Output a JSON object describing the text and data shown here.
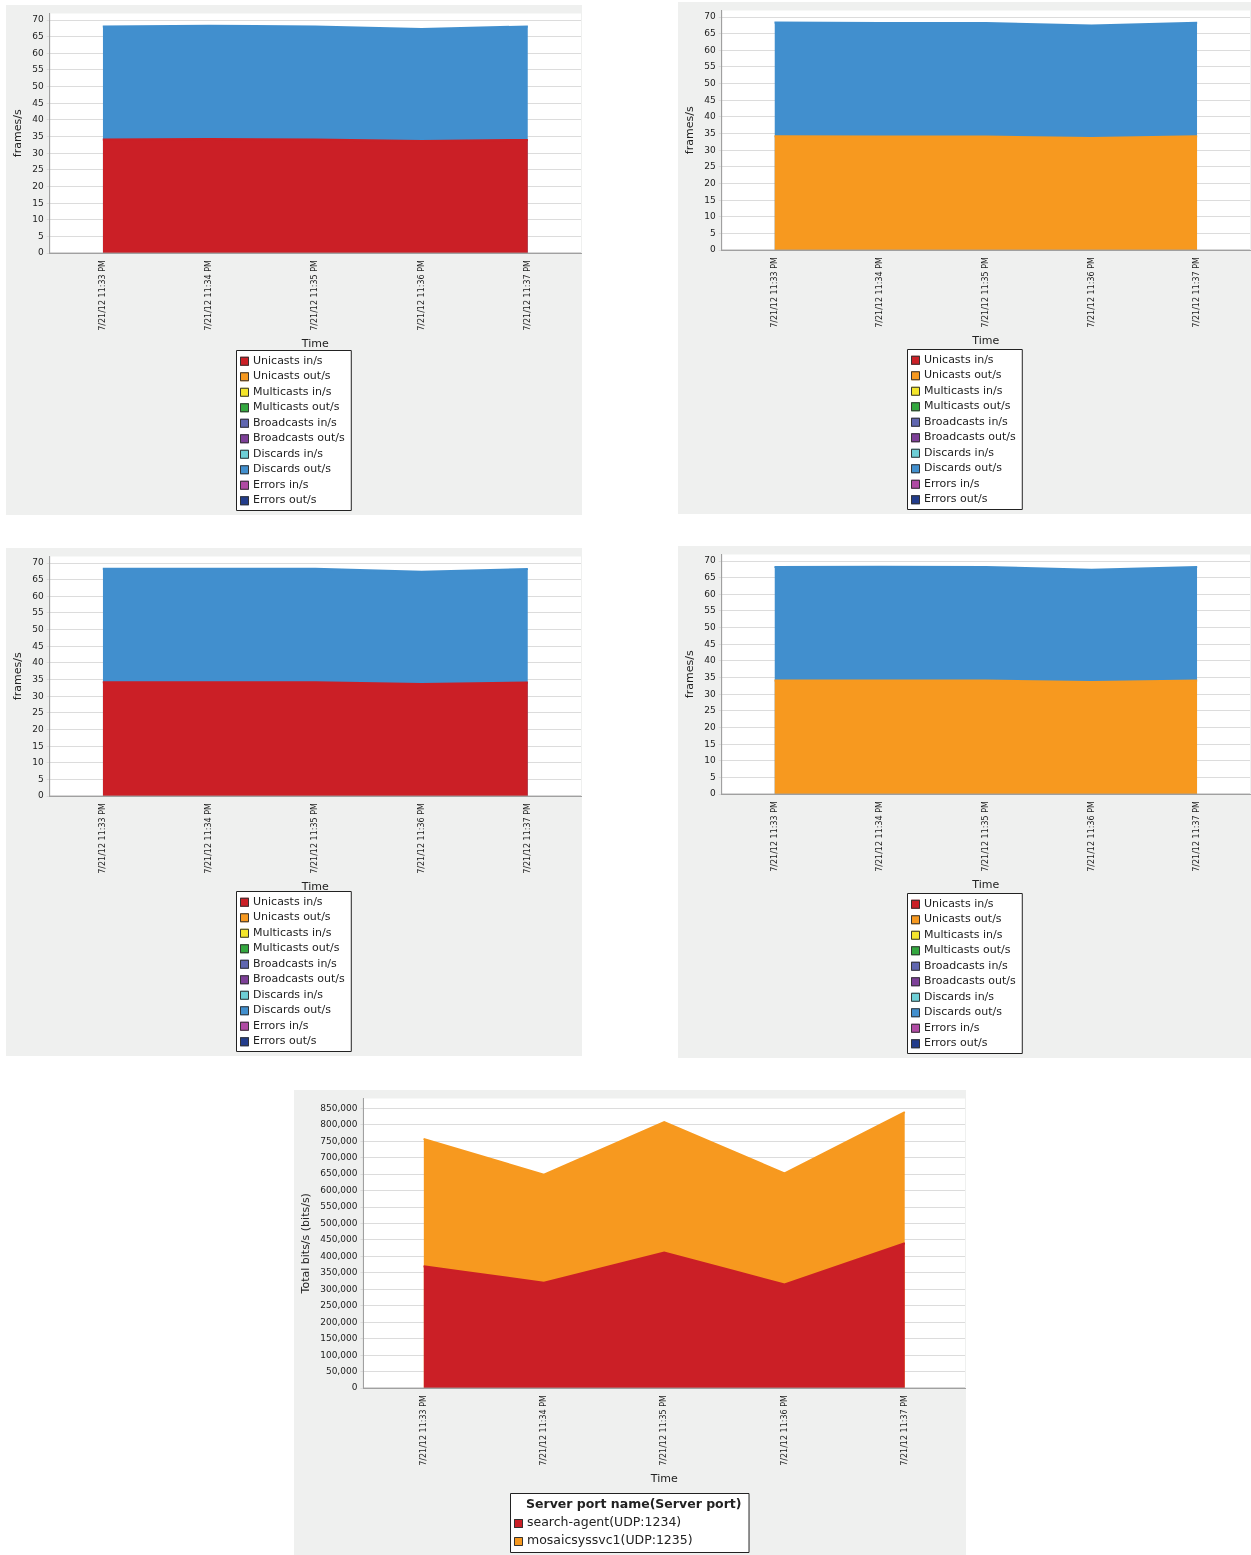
{
  "chart_data": [
    {
      "type": "area",
      "xlabel": "Time",
      "ylabel": "frames/s",
      "categories": [
        "7/21/12 11:33 PM",
        "7/21/12 11:34 PM",
        "7/21/12 11:35 PM",
        "7/21/12 11:36 PM",
        "7/21/12 11:37 PM"
      ],
      "stacked": true,
      "ylim": [
        0,
        72
      ],
      "yticks": [
        0,
        5,
        10,
        15,
        20,
        25,
        30,
        35,
        40,
        45,
        50,
        55,
        60,
        65,
        70
      ],
      "grid": "y",
      "legend": "bottom",
      "marker": "none",
      "series": [
        {
          "name": "Unicasts in/s",
          "color": "#cb1f26",
          "values": [
            34.1,
            34.3,
            34.1,
            33.7,
            34.0
          ]
        },
        {
          "name": "Unicasts out/s",
          "color": "#f7991f",
          "values": [
            null,
            null,
            null,
            null,
            null
          ]
        },
        {
          "name": "Multicasts in/s",
          "color": "#f4e62a",
          "values": [
            null,
            null,
            null,
            null,
            null
          ]
        },
        {
          "name": "Multicasts out/s",
          "color": "#33a83f",
          "values": [
            null,
            null,
            null,
            null,
            null
          ]
        },
        {
          "name": "Broadcasts in/s",
          "color": "#6066b0",
          "values": [
            null,
            null,
            null,
            null,
            null
          ]
        },
        {
          "name": "Broadcasts out/s",
          "color": "#7d3f98",
          "values": [
            null,
            null,
            null,
            null,
            null
          ]
        },
        {
          "name": "Discards in/s",
          "color": "#6dcfd6",
          "values": [
            null,
            null,
            null,
            null,
            null
          ]
        },
        {
          "name": "Discards out/s",
          "color": "#418fce",
          "values": [
            34.0,
            34.0,
            34.0,
            33.6,
            34.1
          ]
        },
        {
          "name": "Errors in/s",
          "color": "#b04aa4",
          "values": [
            null,
            null,
            null,
            null,
            null
          ]
        },
        {
          "name": "Errors out/s",
          "color": "#223c8c",
          "values": [
            null,
            null,
            null,
            null,
            null
          ]
        }
      ]
    },
    {
      "type": "area",
      "xlabel": "Time",
      "ylabel": "frames/s",
      "categories": [
        "7/21/12 11:33 PM",
        "7/21/12 11:34 PM",
        "7/21/12 11:35 PM",
        "7/21/12 11:36 PM",
        "7/21/12 11:37 PM"
      ],
      "stacked": true,
      "ylim": [
        0,
        72
      ],
      "yticks": [
        0,
        5,
        10,
        15,
        20,
        25,
        30,
        35,
        40,
        45,
        50,
        55,
        60,
        65,
        70
      ],
      "grid": "y",
      "legend": "bottom",
      "marker": "none",
      "series": [
        {
          "name": "Unicasts in/s",
          "color": "#cb1f26",
          "values": [
            null,
            null,
            null,
            null,
            null
          ]
        },
        {
          "name": "Unicasts out/s",
          "color": "#f7991f",
          "values": [
            34.2,
            34.1,
            34.1,
            33.7,
            34.2
          ]
        },
        {
          "name": "Multicasts in/s",
          "color": "#f4e62a",
          "values": [
            null,
            null,
            null,
            null,
            null
          ]
        },
        {
          "name": "Multicasts out/s",
          "color": "#33a83f",
          "values": [
            null,
            null,
            null,
            null,
            null
          ]
        },
        {
          "name": "Broadcasts in/s",
          "color": "#6066b0",
          "values": [
            null,
            null,
            null,
            null,
            null
          ]
        },
        {
          "name": "Broadcasts out/s",
          "color": "#7d3f98",
          "values": [
            null,
            null,
            null,
            null,
            null
          ]
        },
        {
          "name": "Discards in/s",
          "color": "#6dcfd6",
          "values": [
            null,
            null,
            null,
            null,
            null
          ]
        },
        {
          "name": "Discards out/s",
          "color": "#418fce",
          "values": [
            34.2,
            34.1,
            34.1,
            33.8,
            34.1
          ]
        },
        {
          "name": "Errors in/s",
          "color": "#b04aa4",
          "values": [
            null,
            null,
            null,
            null,
            null
          ]
        },
        {
          "name": "Errors out/s",
          "color": "#223c8c",
          "values": [
            null,
            null,
            null,
            null,
            null
          ]
        }
      ]
    },
    {
      "type": "area",
      "xlabel": "Time",
      "ylabel": "frames/s",
      "categories": [
        "7/21/12 11:33 PM",
        "7/21/12 11:34 PM",
        "7/21/12 11:35 PM",
        "7/21/12 11:36 PM",
        "7/21/12 11:37 PM"
      ],
      "stacked": true,
      "ylim": [
        0,
        72
      ],
      "yticks": [
        0,
        5,
        10,
        15,
        20,
        25,
        30,
        35,
        40,
        45,
        50,
        55,
        60,
        65,
        70
      ],
      "grid": "y",
      "legend": "bottom",
      "marker": "none",
      "series": [
        {
          "name": "Unicasts in/s",
          "color": "#cb1f26",
          "values": [
            34.2,
            34.2,
            34.2,
            33.7,
            34.1
          ]
        },
        {
          "name": "Unicasts out/s",
          "color": "#f7991f",
          "values": [
            null,
            null,
            null,
            null,
            null
          ]
        },
        {
          "name": "Multicasts in/s",
          "color": "#f4e62a",
          "values": [
            null,
            null,
            null,
            null,
            null
          ]
        },
        {
          "name": "Multicasts out/s",
          "color": "#33a83f",
          "values": [
            null,
            null,
            null,
            null,
            null
          ]
        },
        {
          "name": "Broadcasts in/s",
          "color": "#6066b0",
          "values": [
            null,
            null,
            null,
            null,
            null
          ]
        },
        {
          "name": "Broadcasts out/s",
          "color": "#7d3f98",
          "values": [
            null,
            null,
            null,
            null,
            null
          ]
        },
        {
          "name": "Discards in/s",
          "color": "#6dcfd6",
          "values": [
            null,
            null,
            null,
            null,
            null
          ]
        },
        {
          "name": "Discards out/s",
          "color": "#418fce",
          "values": [
            34.1,
            34.1,
            34.1,
            33.7,
            34.1
          ]
        },
        {
          "name": "Errors in/s",
          "color": "#b04aa4",
          "values": [
            null,
            null,
            null,
            null,
            null
          ]
        },
        {
          "name": "Errors out/s",
          "color": "#223c8c",
          "values": [
            null,
            null,
            null,
            null,
            null
          ]
        }
      ]
    },
    {
      "type": "area",
      "xlabel": "Time",
      "ylabel": "frames/s",
      "categories": [
        "7/21/12 11:33 PM",
        "7/21/12 11:34 PM",
        "7/21/12 11:35 PM",
        "7/21/12 11:36 PM",
        "7/21/12 11:37 PM"
      ],
      "stacked": true,
      "ylim": [
        0,
        72
      ],
      "yticks": [
        0,
        5,
        10,
        15,
        20,
        25,
        30,
        35,
        40,
        45,
        50,
        55,
        60,
        65,
        70
      ],
      "grid": "y",
      "legend": "bottom",
      "marker": "none",
      "series": [
        {
          "name": "Unicasts in/s",
          "color": "#cb1f26",
          "values": [
            null,
            null,
            null,
            null,
            null
          ]
        },
        {
          "name": "Unicasts out/s",
          "color": "#f7991f",
          "values": [
            34.1,
            34.1,
            34.1,
            33.7,
            34.1
          ]
        },
        {
          "name": "Multicasts in/s",
          "color": "#f4e62a",
          "values": [
            null,
            null,
            null,
            null,
            null
          ]
        },
        {
          "name": "Multicasts out/s",
          "color": "#33a83f",
          "values": [
            null,
            null,
            null,
            null,
            null
          ]
        },
        {
          "name": "Broadcasts in/s",
          "color": "#6066b0",
          "values": [
            null,
            null,
            null,
            null,
            null
          ]
        },
        {
          "name": "Broadcasts out/s",
          "color": "#7d3f98",
          "values": [
            null,
            null,
            null,
            null,
            null
          ]
        },
        {
          "name": "Discards in/s",
          "color": "#6dcfd6",
          "values": [
            null,
            null,
            null,
            null,
            null
          ]
        },
        {
          "name": "Discards out/s",
          "color": "#418fce",
          "values": [
            34.1,
            34.2,
            34.1,
            33.7,
            34.1
          ]
        },
        {
          "name": "Errors in/s",
          "color": "#b04aa4",
          "values": [
            null,
            null,
            null,
            null,
            null
          ]
        },
        {
          "name": "Errors out/s",
          "color": "#223c8c",
          "values": [
            null,
            null,
            null,
            null,
            null
          ]
        }
      ]
    },
    {
      "type": "area",
      "xlabel": "Time",
      "ylabel": "Total bits/s (bits/s)",
      "legend_title": "Server port name(Server port)",
      "categories": [
        "7/21/12 11:33 PM",
        "7/21/12 11:34 PM",
        "7/21/12 11:35 PM",
        "7/21/12 11:36 PM",
        "7/21/12 11:37 PM"
      ],
      "stacked": true,
      "ylim": [
        0,
        880000
      ],
      "yticks": [
        {
          "value": 0,
          "label": "0"
        },
        {
          "value": 50000,
          "label": "50,000"
        },
        {
          "value": 100000,
          "label": "100,000"
        },
        {
          "value": 150000,
          "label": "150,000"
        },
        {
          "value": 200000,
          "label": "200,000"
        },
        {
          "value": 250000,
          "label": "250,000"
        },
        {
          "value": 300000,
          "label": "300,000"
        },
        {
          "value": 350000,
          "label": "350,000"
        },
        {
          "value": 400000,
          "label": "400,000"
        },
        {
          "value": 450000,
          "label": "450,000"
        },
        {
          "value": 500000,
          "label": "500,000"
        },
        {
          "value": 550000,
          "label": "550,000"
        },
        {
          "value": 600000,
          "label": "600,000"
        },
        {
          "value": 650000,
          "label": "650,000"
        },
        {
          "value": 700000,
          "label": "700,000"
        },
        {
          "value": 750000,
          "label": "750,000"
        },
        {
          "value": 800000,
          "label": "800,000"
        },
        {
          "value": 850000,
          "label": "850,000"
        }
      ],
      "grid": "y",
      "legend": "bottom",
      "marker": "none",
      "series": [
        {
          "name": "search-agent(UDP:1234)",
          "color": "#cb1f26",
          "values": [
            370000,
            320000,
            412000,
            315000,
            440000
          ]
        },
        {
          "name": "mosaicsyssvc1(UDP:1235)",
          "color": "#f7991f",
          "values": [
            387000,
            328000,
            396000,
            337000,
            398000
          ]
        }
      ]
    }
  ]
}
